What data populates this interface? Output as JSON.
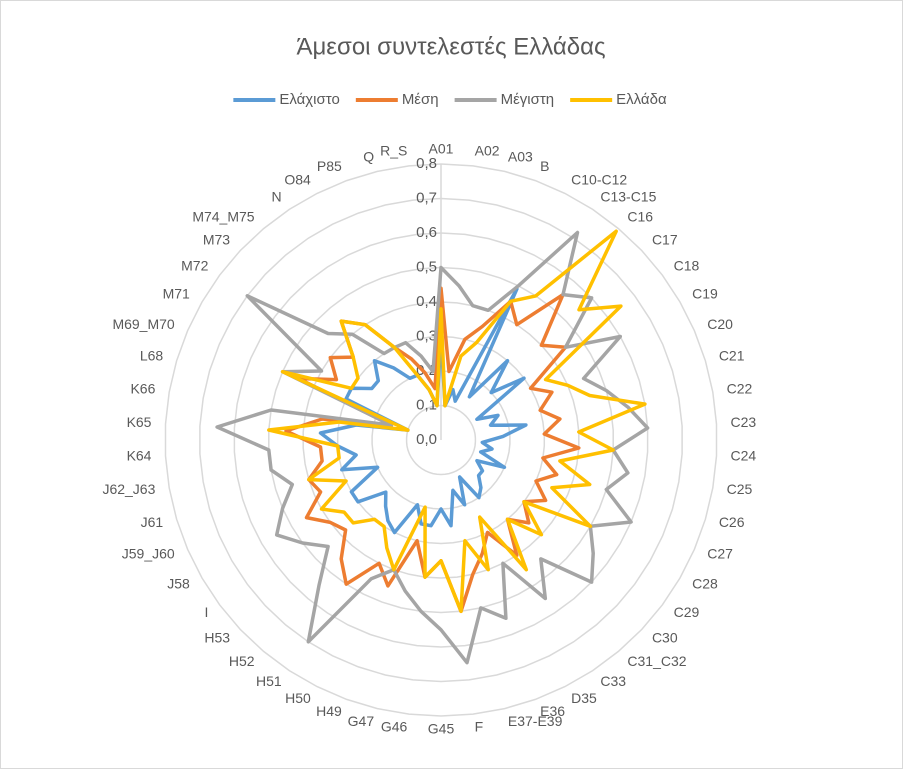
{
  "chart_data": {
    "type": "radar",
    "title": "Άμεσοι συντελεστές Ελλάδας",
    "categories": [
      "A01",
      "A02",
      "A03",
      "B",
      "C10-C12",
      "C13-C15",
      "C16",
      "C17",
      "C18",
      "C19",
      "C20",
      "C21",
      "C22",
      "C23",
      "C24",
      "C25",
      "C26",
      "C27",
      "C28",
      "C29",
      "C30",
      "C31_C32",
      "C33",
      "D35",
      "E36",
      "E37-E39",
      "F",
      "G45",
      "G46",
      "G47",
      "H49",
      "H50",
      "H51",
      "H52",
      "H53",
      "I",
      "J58",
      "J59_J60",
      "J61",
      "J62_J63",
      "K64",
      "K65",
      "K66",
      "L68",
      "M69_M70",
      "M71",
      "M72",
      "M73",
      "M74_M75",
      "N",
      "O84",
      "P85",
      "Q",
      "R_S"
    ],
    "series": [
      {
        "name": "Ελάχιστο",
        "color": "#5b9bd5",
        "values": [
          0.3,
          0.1,
          0.15,
          0.12,
          0.49,
          0.15,
          0.3,
          0.2,
          0.3,
          0.12,
          0.18,
          0.15,
          0.25,
          0.18,
          0.12,
          0.15,
          0.12,
          0.2,
          0.12,
          0.15,
          0.15,
          0.18,
          0.2,
          0.12,
          0.2,
          0.15,
          0.25,
          0.2,
          0.25,
          0.25,
          0.2,
          0.3,
          0.28,
          0.25,
          0.22,
          0.3,
          0.3,
          0.2,
          0.3,
          0.25,
          0.3,
          0.35,
          0.25,
          0.1,
          0.3,
          0.3,
          0.25,
          0.25,
          0.3,
          0.25,
          0.2,
          0.2,
          0.15,
          0.1
        ]
      },
      {
        "name": "Μέση",
        "color": "#ed7d31",
        "values": [
          0.44,
          0.2,
          0.3,
          0.35,
          0.45,
          0.4,
          0.55,
          0.4,
          0.45,
          0.3,
          0.35,
          0.3,
          0.35,
          0.3,
          0.4,
          0.3,
          0.35,
          0.3,
          0.35,
          0.3,
          0.35,
          0.3,
          0.4,
          0.3,
          0.35,
          0.4,
          0.5,
          0.35,
          0.4,
          0.3,
          0.45,
          0.4,
          0.5,
          0.45,
          0.38,
          0.4,
          0.45,
          0.38,
          0.4,
          0.35,
          0.35,
          0.45,
          0.35,
          0.15,
          0.45,
          0.35,
          0.4,
          0.35,
          0.45,
          0.4,
          0.3,
          0.25,
          0.2,
          0.15
        ]
      },
      {
        "name": "Μέγιστη",
        "color": "#a5a5a5",
        "values": [
          0.5,
          0.45,
          0.4,
          0.4,
          0.5,
          0.72,
          0.55,
          0.6,
          0.45,
          0.6,
          0.45,
          0.5,
          0.55,
          0.6,
          0.5,
          0.55,
          0.5,
          0.6,
          0.5,
          0.55,
          0.6,
          0.45,
          0.55,
          0.4,
          0.55,
          0.5,
          0.65,
          0.55,
          0.5,
          0.45,
          0.4,
          0.45,
          0.7,
          0.55,
          0.45,
          0.5,
          0.55,
          0.5,
          0.45,
          0.5,
          0.5,
          0.65,
          0.5,
          0.15,
          0.5,
          0.4,
          0.7,
          0.45,
          0.4,
          0.3,
          0.3,
          0.3,
          0.25,
          0.2
        ]
      },
      {
        "name": "Ελλάδα",
        "color": "#ffc000",
        "values": [
          0.38,
          0.1,
          0.25,
          0.3,
          0.45,
          0.5,
          0.79,
          0.55,
          0.65,
          0.35,
          0.4,
          0.45,
          0.6,
          0.4,
          0.5,
          0.35,
          0.45,
          0.35,
          0.5,
          0.3,
          0.4,
          0.3,
          0.45,
          0.25,
          0.4,
          0.3,
          0.5,
          0.35,
          0.4,
          0.2,
          0.4,
          0.35,
          0.3,
          0.3,
          0.35,
          0.35,
          0.4,
          0.3,
          0.4,
          0.3,
          0.3,
          0.5,
          0.3,
          0.1,
          0.5,
          0.3,
          0.3,
          0.35,
          0.45,
          0.4,
          0.3,
          0.2,
          0.15,
          0.1
        ]
      }
    ],
    "ylim": [
      0,
      0.8
    ],
    "yticks": [
      {
        "value": 0,
        "label": "0,0"
      },
      {
        "value": 0.1,
        "label": "0,1"
      },
      {
        "value": 0.2,
        "label": "0,2"
      },
      {
        "value": 0.3,
        "label": "0,3"
      },
      {
        "value": 0.4,
        "label": "0,4"
      },
      {
        "value": 0.5,
        "label": "0,5"
      },
      {
        "value": 0.6,
        "label": "0,6"
      },
      {
        "value": 0.7,
        "label": "0,7"
      },
      {
        "value": 0.8,
        "label": "0,8"
      }
    ],
    "grid": true,
    "legend": "top"
  }
}
